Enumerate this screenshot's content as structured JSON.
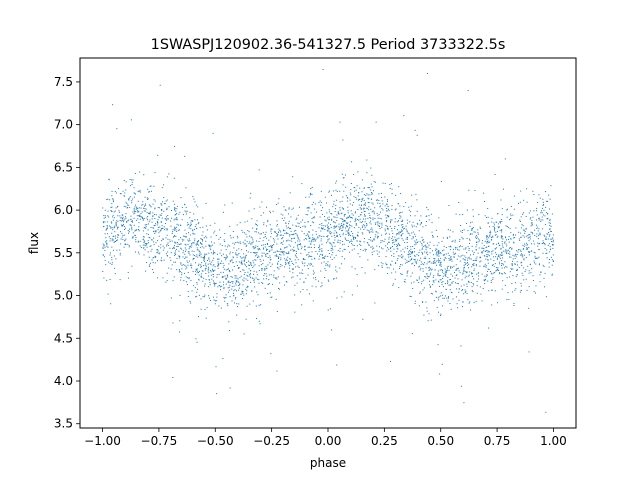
{
  "chart_data": {
    "type": "scatter",
    "title": "1SWASPJ120902.36-541327.5 Period 3733322.5s",
    "xlabel": "phase",
    "ylabel": "flux",
    "xlim": [
      -1.1,
      1.1
    ],
    "ylim": [
      3.45,
      7.78
    ],
    "xticks": [
      -1.0,
      -0.75,
      -0.5,
      -0.25,
      0.0,
      0.25,
      0.5,
      0.75,
      1.0
    ],
    "xtick_labels": [
      "−1.00",
      "−0.75",
      "−0.50",
      "−0.25",
      "0.00",
      "0.25",
      "0.50",
      "0.75",
      "1.00"
    ],
    "yticks": [
      3.5,
      4.0,
      4.5,
      5.0,
      5.5,
      6.0,
      6.5,
      7.0,
      7.5
    ],
    "ytick_labels": [
      "3.5",
      "4.0",
      "4.5",
      "5.0",
      "5.5",
      "6.0",
      "6.5",
      "7.0",
      "7.5"
    ],
    "grid": false,
    "marker_color": "#1f77b4",
    "series": [
      {
        "x": [
          -1.0,
          -0.95,
          -0.9,
          -0.85,
          -0.8,
          -0.75,
          -0.7,
          -0.65,
          -0.6,
          -0.55,
          -0.5,
          -0.45,
          -0.4,
          -0.35,
          -0.3,
          -0.25,
          -0.2,
          -0.15,
          -0.1,
          -0.05,
          0.0,
          0.05,
          0.1,
          0.15,
          0.2,
          0.25,
          0.3,
          0.35,
          0.4,
          0.45,
          0.5,
          0.55,
          0.6,
          0.65,
          0.7,
          0.75,
          0.8,
          0.85,
          0.9,
          0.95,
          1.0
        ],
        "y": [
          5.72,
          5.8,
          5.85,
          5.9,
          5.85,
          5.78,
          5.7,
          5.6,
          5.5,
          5.4,
          5.3,
          5.3,
          5.35,
          5.42,
          5.48,
          5.52,
          5.55,
          5.58,
          5.62,
          5.68,
          5.72,
          5.8,
          5.85,
          5.9,
          5.85,
          5.78,
          5.7,
          5.6,
          5.5,
          5.4,
          5.3,
          5.3,
          5.35,
          5.42,
          5.48,
          5.52,
          5.55,
          5.58,
          5.62,
          5.68,
          5.72
        ]
      }
    ]
  }
}
